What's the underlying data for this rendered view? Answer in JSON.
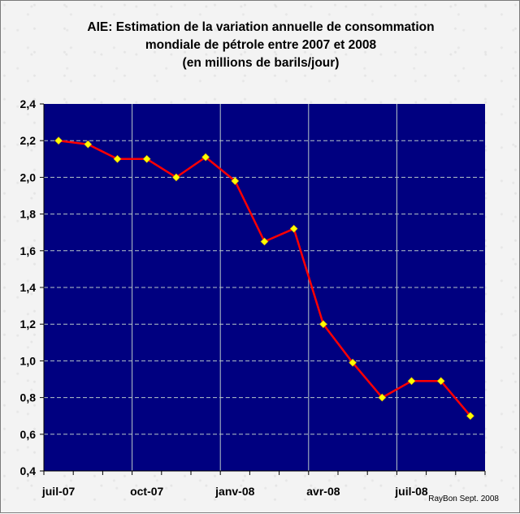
{
  "chart_data": {
    "type": "line",
    "title_lines": [
      "AIE: Estimation de la variation annuelle de consommation",
      "mondiale de pétrole entre 2007 et 2008",
      "(en millions de barils/jour)"
    ],
    "xlabel": "",
    "ylabel": "",
    "x_tick_labels": [
      "juil-07",
      "oct-07",
      "janv-08",
      "avr-08",
      "juil-08"
    ],
    "y_tick_labels": [
      "0,4",
      "0,6",
      "0,8",
      "1,0",
      "1,2",
      "1,4",
      "1,6",
      "1,8",
      "2,0",
      "2,2",
      "2,4"
    ],
    "ylim": [
      0.4,
      2.4
    ],
    "y_step": 0.2,
    "grid": true,
    "plot_background": "#000080",
    "series": [
      {
        "line_color": "#ff0000",
        "marker_color": "#ffff00",
        "x": [
          "juil-07",
          "août-07",
          "sept-07",
          "oct-07",
          "nov-07",
          "déc-07",
          "janv-08",
          "févr-08",
          "mars-08",
          "avr-08",
          "mai-08",
          "juin-08",
          "juil-08",
          "août-08",
          "sept-08"
        ],
        "values": [
          2.2,
          2.18,
          2.1,
          2.1,
          2.0,
          2.11,
          1.98,
          1.65,
          1.72,
          1.2,
          0.99,
          0.8,
          0.89,
          0.89,
          0.7
        ]
      }
    ],
    "credit": "RayBon Sept. 2008"
  }
}
